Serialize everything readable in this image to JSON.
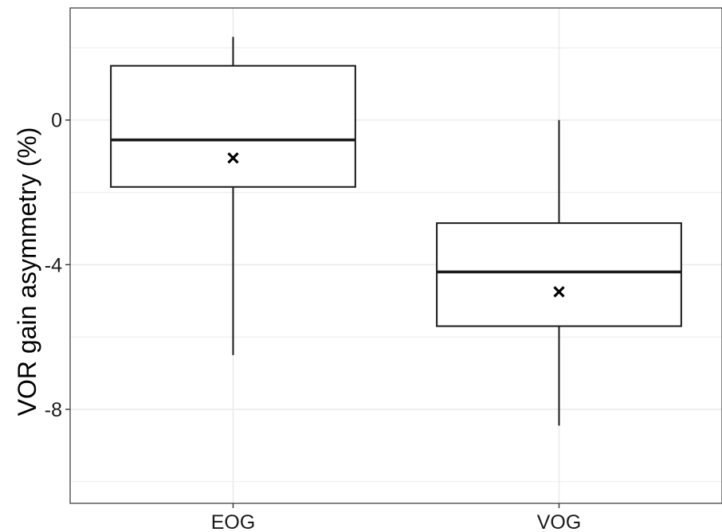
{
  "chart_data": {
    "type": "box",
    "title": "",
    "xlabel": "",
    "ylabel": "VOR gain asymmetry (%)",
    "ylim": [
      -10.6,
      3.1
    ],
    "y_ticks": [
      0,
      -4,
      -8
    ],
    "y_tick_labels": [
      "0",
      "-4",
      "-8"
    ],
    "y_minor_gridlines": [
      2,
      -2,
      -6,
      -10
    ],
    "grid": true,
    "categories": [
      "EOG",
      "VOG"
    ],
    "boxes": [
      {
        "category": "EOG",
        "whisker_low": -6.5,
        "q1": -1.85,
        "median": -0.55,
        "q3": 1.5,
        "whisker_high": 2.3,
        "mean": -1.05
      },
      {
        "category": "VOG",
        "whisker_low": -8.45,
        "q1": -5.7,
        "median": -4.2,
        "q3": -2.85,
        "whisker_high": 0.0,
        "mean": -4.75
      }
    ],
    "mean_marker": "×",
    "colors": {
      "box_fill": "#ffffff",
      "box_stroke": "#1a1a1a",
      "grid": "#ebebeb",
      "panel_border": "#333333"
    }
  }
}
